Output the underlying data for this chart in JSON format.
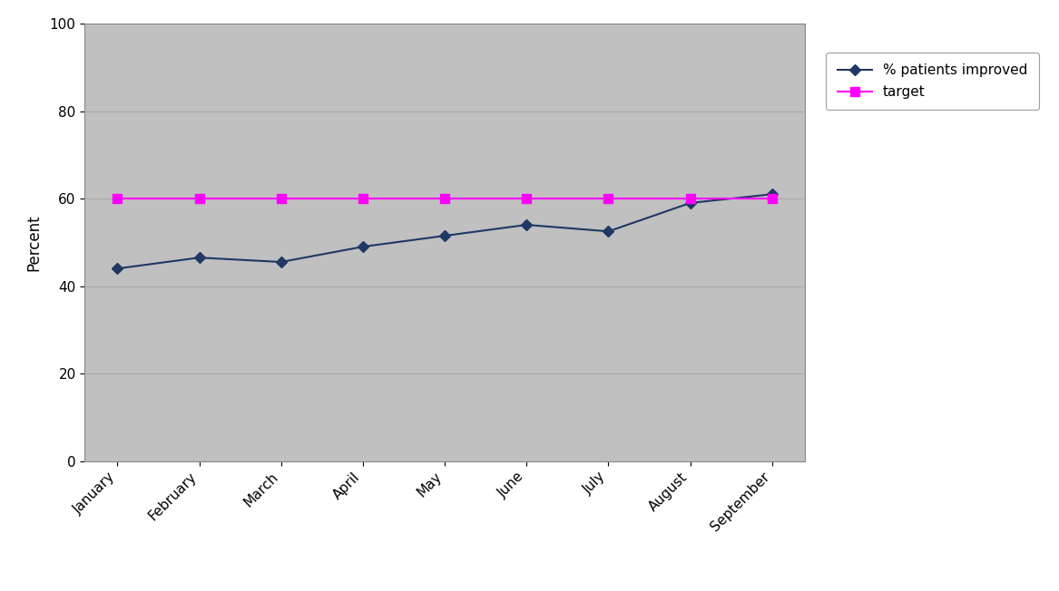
{
  "months": [
    "January",
    "February",
    "March",
    "April",
    "May",
    "June",
    "July",
    "August",
    "September"
  ],
  "patients_improved": [
    44,
    46.5,
    45.5,
    49,
    51.5,
    54,
    52.5,
    59,
    61
  ],
  "target": [
    60,
    60,
    60,
    60,
    60,
    60,
    60,
    60,
    60
  ],
  "patients_color": "#1F3864",
  "target_color": "#FF00FF",
  "patients_label": "% patients improved",
  "target_label": "target",
  "ylabel": "Percent",
  "ylim": [
    0,
    100
  ],
  "yticks": [
    0,
    20,
    40,
    60,
    80,
    100
  ],
  "plot_bg_color": "#C0C0C0",
  "fig_bg_color": "#FFFFFF",
  "grid_color": "#AAAAAA",
  "marker_patients": "D",
  "marker_target": "s",
  "linewidth": 1.5,
  "markersize_patients": 6,
  "markersize_target": 7,
  "tick_fontsize": 11,
  "ylabel_fontsize": 12,
  "legend_fontsize": 11
}
